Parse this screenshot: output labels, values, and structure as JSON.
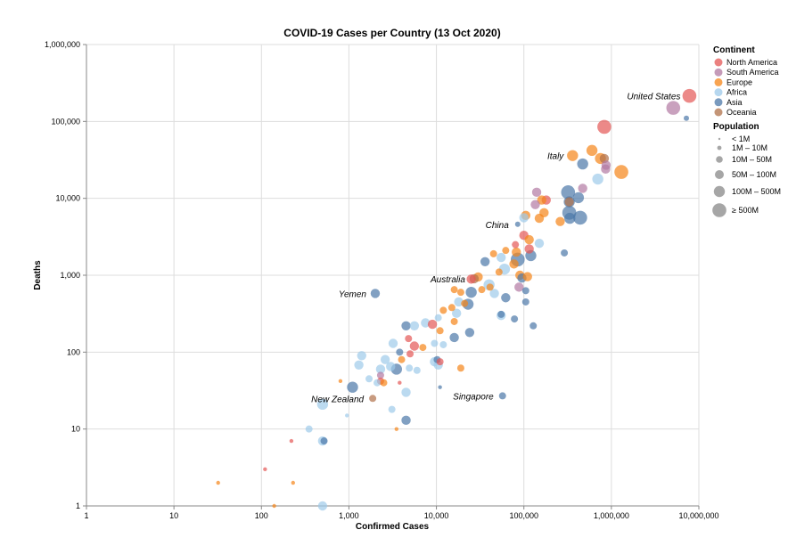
{
  "chart_data": {
    "type": "scatter",
    "title": "COVID-19 Cases per Country (13 Oct 2020)",
    "xlabel": "Confirmed Cases",
    "ylabel": "Deaths",
    "xscale": "log",
    "yscale": "log",
    "xlim": [
      1,
      10000000
    ],
    "ylim": [
      1,
      1000000
    ],
    "x_ticks": [
      "1",
      "10",
      "100",
      "1,000",
      "10,000",
      "100,000",
      "1,000,000",
      "10,000,000"
    ],
    "y_ticks": [
      "1",
      "10",
      "100",
      "1,000",
      "10,000",
      "100,000",
      "1,000,000"
    ],
    "grid": true,
    "legend_placement": "right",
    "color_legend": {
      "title": "Continent",
      "entries": [
        {
          "label": "North America",
          "color": "#e45756"
        },
        {
          "label": "South America",
          "color": "#b279a2"
        },
        {
          "label": "Europe",
          "color": "#f58518"
        },
        {
          "label": "Africa",
          "color": "#9ecae9"
        },
        {
          "label": "Asia",
          "color": "#4c78a8"
        },
        {
          "label": "Oceania",
          "color": "#b0714a"
        }
      ]
    },
    "size_legend": {
      "title": "Population",
      "entries": [
        {
          "label": "< 1M",
          "r": 1
        },
        {
          "label": "1M – 10M",
          "r": 2
        },
        {
          "label": "10M – 50M",
          "r": 4
        },
        {
          "label": "50M – 100M",
          "r": 5
        },
        {
          "label": "100M – 500M",
          "r": 6
        },
        {
          "label": "≥ 500M",
          "r": 7
        }
      ]
    },
    "annotations": [
      {
        "label": "United States",
        "x": 7800000,
        "y": 215000
      },
      {
        "label": "Italy",
        "x": 360000,
        "y": 36000
      },
      {
        "label": "China",
        "x": 85000,
        "y": 4600
      },
      {
        "label": "Australia",
        "x": 27000,
        "y": 900
      },
      {
        "label": "Yemen",
        "x": 2000,
        "y": 580
      },
      {
        "label": "New Zealand",
        "x": 1870,
        "y": 25
      },
      {
        "label": "Singapore",
        "x": 57000,
        "y": 27
      }
    ],
    "points": [
      {
        "continent": "North America",
        "x": 7800000,
        "y": 215000,
        "r": 6
      },
      {
        "continent": "South America",
        "x": 5100000,
        "y": 150000,
        "r": 6
      },
      {
        "continent": "Asia",
        "x": 7200000,
        "y": 110000,
        "r": 7
      },
      {
        "continent": "North America",
        "x": 830000,
        "y": 85000,
        "r": 6
      },
      {
        "continent": "Europe",
        "x": 600000,
        "y": 42000,
        "r": 5
      },
      {
        "continent": "Europe",
        "x": 360000,
        "y": 36000,
        "r": 5
      },
      {
        "continent": "Europe",
        "x": 750000,
        "y": 33000,
        "r": 5
      },
      {
        "continent": "Oceania",
        "x": 830000,
        "y": 33000,
        "r": 4
      },
      {
        "continent": "Asia",
        "x": 470000,
        "y": 28000,
        "r": 5
      },
      {
        "continent": "South America",
        "x": 870000,
        "y": 27000,
        "r": 4
      },
      {
        "continent": "South America",
        "x": 860000,
        "y": 24000,
        "r": 4
      },
      {
        "continent": "Europe",
        "x": 1300000,
        "y": 22000,
        "r": 6
      },
      {
        "continent": "Africa",
        "x": 700000,
        "y": 17800,
        "r": 5
      },
      {
        "continent": "South America",
        "x": 470000,
        "y": 13500,
        "r": 4
      },
      {
        "continent": "Asia",
        "x": 320000,
        "y": 12000,
        "r": 6
      },
      {
        "continent": "South America",
        "x": 140000,
        "y": 12000,
        "r": 4
      },
      {
        "continent": "Asia",
        "x": 420000,
        "y": 10200,
        "r": 5
      },
      {
        "continent": "Asia",
        "x": 330000,
        "y": 9000,
        "r": 5
      },
      {
        "continent": "Oceania",
        "x": 330000,
        "y": 9000,
        "r": 4
      },
      {
        "continent": "North America",
        "x": 180000,
        "y": 9500,
        "r": 4
      },
      {
        "continent": "Europe",
        "x": 160000,
        "y": 9500,
        "r": 4
      },
      {
        "continent": "South America",
        "x": 135000,
        "y": 8300,
        "r": 4
      },
      {
        "continent": "Europe",
        "x": 170000,
        "y": 6500,
        "r": 4
      },
      {
        "continent": "Asia",
        "x": 330000,
        "y": 6500,
        "r": 6
      },
      {
        "continent": "Asia",
        "x": 440000,
        "y": 5600,
        "r": 6
      },
      {
        "continent": "Asia",
        "x": 335000,
        "y": 5500,
        "r": 5
      },
      {
        "continent": "Europe",
        "x": 260000,
        "y": 5000,
        "r": 4
      },
      {
        "continent": "Europe",
        "x": 150000,
        "y": 5500,
        "r": 4
      },
      {
        "continent": "Europe",
        "x": 105000,
        "y": 6000,
        "r": 4
      },
      {
        "continent": "Africa",
        "x": 100000,
        "y": 5600,
        "r": 4
      },
      {
        "continent": "Asia",
        "x": 85000,
        "y": 4600,
        "r": 7
      },
      {
        "continent": "North America",
        "x": 100000,
        "y": 3300,
        "r": 4
      },
      {
        "continent": "Europe",
        "x": 115000,
        "y": 2900,
        "r": 4
      },
      {
        "continent": "Africa",
        "x": 150000,
        "y": 2600,
        "r": 4
      },
      {
        "continent": "North America",
        "x": 80000,
        "y": 2500,
        "r": 3
      },
      {
        "continent": "North America",
        "x": 115000,
        "y": 2200,
        "r": 4
      },
      {
        "continent": "Europe",
        "x": 62000,
        "y": 2100,
        "r": 3
      },
      {
        "continent": "Europe",
        "x": 82000,
        "y": 2000,
        "r": 4
      },
      {
        "continent": "Asia",
        "x": 290000,
        "y": 1950,
        "r": 3
      },
      {
        "continent": "Europe",
        "x": 45000,
        "y": 1900,
        "r": 3
      },
      {
        "continent": "Africa",
        "x": 55000,
        "y": 1700,
        "r": 4
      },
      {
        "continent": "Asia",
        "x": 85000,
        "y": 1600,
        "r": 6
      },
      {
        "continent": "Asia",
        "x": 120000,
        "y": 1800,
        "r": 5
      },
      {
        "continent": "Asia",
        "x": 36000,
        "y": 1500,
        "r": 4
      },
      {
        "continent": "Europe",
        "x": 77000,
        "y": 1400,
        "r": 4
      },
      {
        "continent": "Africa",
        "x": 60000,
        "y": 1200,
        "r": 5
      },
      {
        "continent": "Europe",
        "x": 52000,
        "y": 1100,
        "r": 3
      },
      {
        "continent": "Europe",
        "x": 90000,
        "y": 1000,
        "r": 4
      },
      {
        "continent": "Europe",
        "x": 30000,
        "y": 950,
        "r": 4
      },
      {
        "continent": "Asia",
        "x": 95000,
        "y": 920,
        "r": 4
      },
      {
        "continent": "Europe",
        "x": 110000,
        "y": 960,
        "r": 4
      },
      {
        "continent": "Oceania",
        "x": 27000,
        "y": 900,
        "r": 4
      },
      {
        "continent": "North America",
        "x": 25000,
        "y": 890,
        "r": 4
      },
      {
        "continent": "Africa",
        "x": 40000,
        "y": 750,
        "r": 5
      },
      {
        "continent": "Europe",
        "x": 41000,
        "y": 700,
        "r": 3
      },
      {
        "continent": "Europe",
        "x": 33000,
        "y": 650,
        "r": 3
      },
      {
        "continent": "South America",
        "x": 88000,
        "y": 700,
        "r": 4
      },
      {
        "continent": "Asia",
        "x": 105000,
        "y": 630,
        "r": 3
      },
      {
        "continent": "Europe",
        "x": 16000,
        "y": 650,
        "r": 3
      },
      {
        "continent": "Asia",
        "x": 2000,
        "y": 580,
        "r": 4
      },
      {
        "continent": "Asia",
        "x": 25000,
        "y": 600,
        "r": 5
      },
      {
        "continent": "Africa",
        "x": 46000,
        "y": 580,
        "r": 4
      },
      {
        "continent": "Europe",
        "x": 19000,
        "y": 600,
        "r": 3
      },
      {
        "continent": "Asia",
        "x": 62000,
        "y": 510,
        "r": 4
      },
      {
        "continent": "Asia",
        "x": 105000,
        "y": 450,
        "r": 3
      },
      {
        "continent": "Africa",
        "x": 18000,
        "y": 450,
        "r": 4
      },
      {
        "continent": "Asia",
        "x": 23000,
        "y": 420,
        "r": 5
      },
      {
        "continent": "Europe",
        "x": 21000,
        "y": 430,
        "r": 3
      },
      {
        "continent": "Europe",
        "x": 15000,
        "y": 380,
        "r": 3
      },
      {
        "continent": "Europe",
        "x": 12000,
        "y": 350,
        "r": 3
      },
      {
        "continent": "Africa",
        "x": 17000,
        "y": 320,
        "r": 4
      },
      {
        "continent": "Asia",
        "x": 55000,
        "y": 310,
        "r": 3
      },
      {
        "continent": "Africa",
        "x": 55000,
        "y": 300,
        "r": 4
      },
      {
        "continent": "Asia",
        "x": 78000,
        "y": 270,
        "r": 3
      },
      {
        "continent": "Africa",
        "x": 10500,
        "y": 280,
        "r": 3
      },
      {
        "continent": "Europe",
        "x": 16000,
        "y": 250,
        "r": 3
      },
      {
        "continent": "Africa",
        "x": 7500,
        "y": 240,
        "r": 4
      },
      {
        "continent": "North America",
        "x": 9000,
        "y": 230,
        "r": 4
      },
      {
        "continent": "Asia",
        "x": 4500,
        "y": 220,
        "r": 4
      },
      {
        "continent": "Africa",
        "x": 5600,
        "y": 220,
        "r": 4
      },
      {
        "continent": "Asia",
        "x": 128000,
        "y": 220,
        "r": 3
      },
      {
        "continent": "Europe",
        "x": 11000,
        "y": 190,
        "r": 3
      },
      {
        "continent": "Asia",
        "x": 24000,
        "y": 180,
        "r": 4
      },
      {
        "continent": "Asia",
        "x": 16000,
        "y": 155,
        "r": 4
      },
      {
        "continent": "North America",
        "x": 4800,
        "y": 150,
        "r": 3
      },
      {
        "continent": "Africa",
        "x": 3200,
        "y": 130,
        "r": 4
      },
      {
        "continent": "North America",
        "x": 5600,
        "y": 120,
        "r": 4
      },
      {
        "continent": "Africa",
        "x": 9500,
        "y": 130,
        "r": 3
      },
      {
        "continent": "Africa",
        "x": 12000,
        "y": 125,
        "r": 3
      },
      {
        "continent": "Europe",
        "x": 7000,
        "y": 115,
        "r": 3
      },
      {
        "continent": "Asia",
        "x": 3800,
        "y": 100,
        "r": 3
      },
      {
        "continent": "North America",
        "x": 5000,
        "y": 95,
        "r": 3
      },
      {
        "continent": "Africa",
        "x": 1400,
        "y": 90,
        "r": 4
      },
      {
        "continent": "Africa",
        "x": 2600,
        "y": 80,
        "r": 4
      },
      {
        "continent": "Europe",
        "x": 4000,
        "y": 80,
        "r": 3
      },
      {
        "continent": "Africa",
        "x": 9500,
        "y": 75,
        "r": 4
      },
      {
        "continent": "Asia",
        "x": 10200,
        "y": 80,
        "r": 3
      },
      {
        "continent": "North America",
        "x": 11000,
        "y": 75,
        "r": 3
      },
      {
        "continent": "Africa",
        "x": 1300,
        "y": 68,
        "r": 4
      },
      {
        "continent": "Africa",
        "x": 3000,
        "y": 65,
        "r": 4
      },
      {
        "continent": "Africa",
        "x": 4900,
        "y": 62,
        "r": 3
      },
      {
        "continent": "Africa",
        "x": 10500,
        "y": 68,
        "r": 4
      },
      {
        "continent": "Europe",
        "x": 19000,
        "y": 62,
        "r": 3
      },
      {
        "continent": "Africa",
        "x": 2300,
        "y": 60,
        "r": 4
      },
      {
        "continent": "Asia",
        "x": 3500,
        "y": 60,
        "r": 5
      },
      {
        "continent": "Africa",
        "x": 6000,
        "y": 58,
        "r": 3
      },
      {
        "continent": "South America",
        "x": 2300,
        "y": 50,
        "r": 3
      },
      {
        "continent": "North America",
        "x": 2300,
        "y": 42,
        "r": 3
      },
      {
        "continent": "Africa",
        "x": 1700,
        "y": 45,
        "r": 3
      },
      {
        "continent": "Africa",
        "x": 2100,
        "y": 40,
        "r": 3
      },
      {
        "continent": "Europe",
        "x": 2500,
        "y": 40,
        "r": 3
      },
      {
        "continent": "North America",
        "x": 3800,
        "y": 40,
        "r": 2
      },
      {
        "continent": "Europe",
        "x": 800,
        "y": 42,
        "r": 2
      },
      {
        "continent": "Asia",
        "x": 1100,
        "y": 35,
        "r": 5
      },
      {
        "continent": "Asia",
        "x": 11000,
        "y": 35,
        "r": 2
      },
      {
        "continent": "Africa",
        "x": 4500,
        "y": 30,
        "r": 4
      },
      {
        "continent": "Asia",
        "x": 57000,
        "y": 27,
        "r": 3
      },
      {
        "continent": "Oceania",
        "x": 1870,
        "y": 25,
        "r": 3
      },
      {
        "continent": "Africa",
        "x": 500,
        "y": 21,
        "r": 5
      },
      {
        "continent": "Africa",
        "x": 3100,
        "y": 18,
        "r": 3
      },
      {
        "continent": "Africa",
        "x": 950,
        "y": 15,
        "r": 2
      },
      {
        "continent": "Asia",
        "x": 4500,
        "y": 13,
        "r": 4
      },
      {
        "continent": "Africa",
        "x": 350,
        "y": 10,
        "r": 3
      },
      {
        "continent": "Europe",
        "x": 3500,
        "y": 10,
        "r": 2
      },
      {
        "continent": "Africa",
        "x": 500,
        "y": 7,
        "r": 4
      },
      {
        "continent": "Asia",
        "x": 520,
        "y": 7,
        "r": 3
      },
      {
        "continent": "North America",
        "x": 220,
        "y": 7,
        "r": 2
      },
      {
        "continent": "North America",
        "x": 110,
        "y": 3,
        "r": 2
      },
      {
        "continent": "Europe",
        "x": 32,
        "y": 2,
        "r": 2
      },
      {
        "continent": "Europe",
        "x": 230,
        "y": 2,
        "r": 2
      },
      {
        "continent": "Europe",
        "x": 140,
        "y": 1,
        "r": 2
      },
      {
        "continent": "Africa",
        "x": 500,
        "y": 1,
        "r": 4
      }
    ]
  }
}
